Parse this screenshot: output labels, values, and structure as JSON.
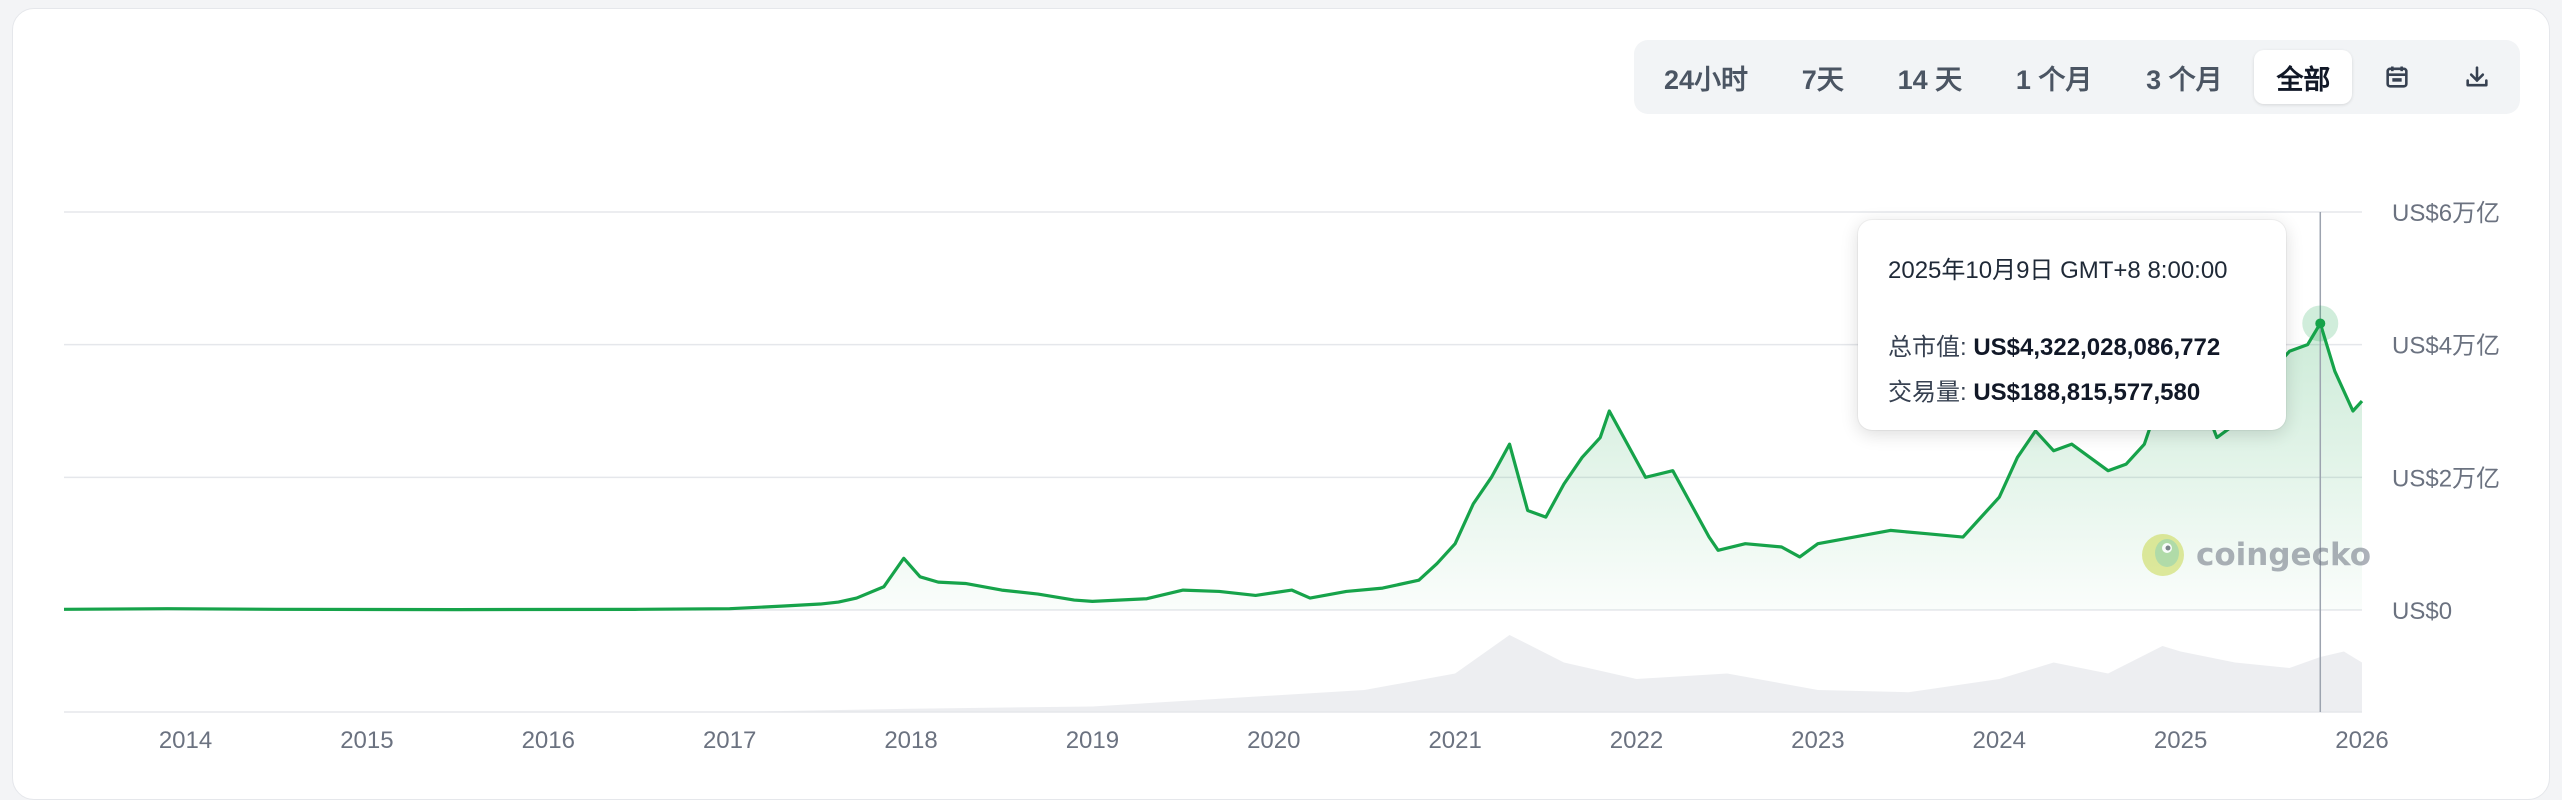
{
  "toolbar": {
    "ranges": [
      "24小时",
      "7天",
      "14 天",
      "1 个月",
      "3 个月",
      "全部"
    ],
    "active": "全部",
    "calendar_icon": "calendar-icon",
    "download_icon": "download-icon"
  },
  "tooltip": {
    "date": "2025年10月9日 GMT+8 8:00:00",
    "market_cap_label": "总市值:",
    "market_cap_value": "US$4,322,028,086,772",
    "volume_label": "交易量:",
    "volume_value": "US$188,815,577,580"
  },
  "watermark": {
    "text": "coingecko"
  },
  "colors": {
    "line": "#16a34a",
    "area": "#16a34a",
    "volume": "#e5e7eb",
    "grid": "#e5e7eb",
    "axis_text": "#6b7280"
  },
  "chart_data": {
    "type": "area",
    "y_axis": {
      "position": "right",
      "ticks": [
        0,
        2,
        4,
        6
      ],
      "tick_labels": [
        "US$0",
        "US$2万亿",
        "US$4万亿",
        "US$6万亿"
      ],
      "unit": "万亿 USD",
      "ylim": [
        0,
        6
      ]
    },
    "x_axis": {
      "tick_labels": [
        "2014",
        "2015",
        "2016",
        "2017",
        "2018",
        "2019",
        "2020",
        "2021",
        "2022",
        "2023",
        "2024",
        "2025",
        "2026"
      ],
      "xlim": [
        2013.33,
        2026.0
      ]
    },
    "grid": true,
    "series": [
      {
        "values_x": [
          2013.33,
          2013.9,
          2014.5,
          2015.5,
          2016.5,
          2017.0,
          2017.3,
          2017.5,
          2017.6,
          2017.7,
          2017.85,
          2017.96,
          2018.05,
          2018.15,
          2018.3,
          2018.5,
          2018.7,
          2018.9,
          2019.0,
          2019.3,
          2019.5,
          2019.7,
          2019.9,
          2020.0,
          2020.1,
          2020.2,
          2020.4,
          2020.6,
          2020.8,
          2020.9,
          2021.0,
          2021.1,
          2021.2,
          2021.3,
          2021.4,
          2021.5,
          2021.6,
          2021.7,
          2021.8,
          2021.85,
          2021.95,
          2022.05,
          2022.2,
          2022.3,
          2022.4,
          2022.45,
          2022.6,
          2022.8,
          2022.9,
          2023.0,
          2023.2,
          2023.4,
          2023.6,
          2023.8,
          2023.9,
          2024.0,
          2024.1,
          2024.2,
          2024.3,
          2024.4,
          2024.5,
          2024.6,
          2024.7,
          2024.8,
          2024.9,
          2025.0,
          2025.1,
          2025.2,
          2025.3,
          2025.4,
          2025.5,
          2025.6,
          2025.7,
          2025.77,
          2025.85,
          2025.95,
          2026.0
        ],
        "values_y": [
          0.01,
          0.02,
          0.01,
          0.006,
          0.01,
          0.02,
          0.06,
          0.09,
          0.12,
          0.18,
          0.35,
          0.78,
          0.5,
          0.42,
          0.4,
          0.3,
          0.24,
          0.15,
          0.13,
          0.17,
          0.3,
          0.28,
          0.22,
          0.26,
          0.3,
          0.18,
          0.28,
          0.33,
          0.45,
          0.7,
          1.0,
          1.6,
          2.0,
          2.5,
          1.5,
          1.4,
          1.9,
          2.3,
          2.6,
          3.0,
          2.5,
          2.0,
          2.1,
          1.6,
          1.1,
          0.9,
          1.0,
          0.95,
          0.8,
          1.0,
          1.1,
          1.2,
          1.15,
          1.1,
          1.4,
          1.7,
          2.3,
          2.7,
          2.4,
          2.5,
          2.3,
          2.1,
          2.2,
          2.5,
          3.3,
          3.5,
          3.3,
          2.6,
          2.8,
          3.3,
          3.6,
          3.9,
          4.0,
          4.32,
          3.6,
          3.0,
          3.15
        ]
      }
    ],
    "volume_series": {
      "values_x": [
        2013.33,
        2017.0,
        2018.0,
        2019.0,
        2020.0,
        2020.5,
        2021.0,
        2021.3,
        2021.6,
        2022.0,
        2022.5,
        2023.0,
        2023.5,
        2024.0,
        2024.3,
        2024.6,
        2024.9,
        2025.0,
        2025.3,
        2025.6,
        2025.77,
        2025.9,
        2026.0
      ],
      "values_y": [
        0.0,
        0.0,
        0.03,
        0.05,
        0.15,
        0.2,
        0.35,
        0.7,
        0.45,
        0.3,
        0.35,
        0.2,
        0.18,
        0.3,
        0.45,
        0.35,
        0.6,
        0.55,
        0.45,
        0.4,
        0.5,
        0.55,
        0.45
      ],
      "unit": "relative"
    },
    "hover": {
      "x": 2025.77,
      "y": 4.32
    }
  }
}
